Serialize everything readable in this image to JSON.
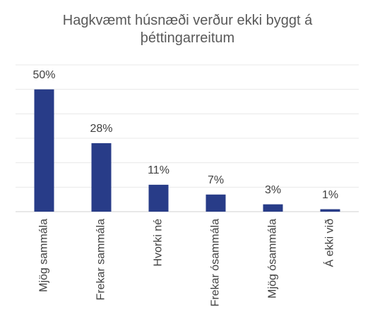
{
  "chart_data": {
    "type": "bar",
    "title": "Hagkvæmt húsnæði verður ekki byggt á þéttingarreitum",
    "categories": [
      "Mjög sammála",
      "Frekar sammála",
      "Hvorki né",
      "Frekar ósammála",
      "Mjög ósammála",
      "Á ekki við"
    ],
    "values": [
      50,
      28,
      11,
      7,
      3,
      1
    ],
    "value_labels": [
      "50%",
      "28%",
      "11%",
      "7%",
      "3%",
      "1%"
    ],
    "color": "#283c88",
    "ylim": [
      0,
      60
    ],
    "yticks": [
      0,
      10,
      20,
      30,
      40,
      50,
      60
    ],
    "grid": true
  }
}
